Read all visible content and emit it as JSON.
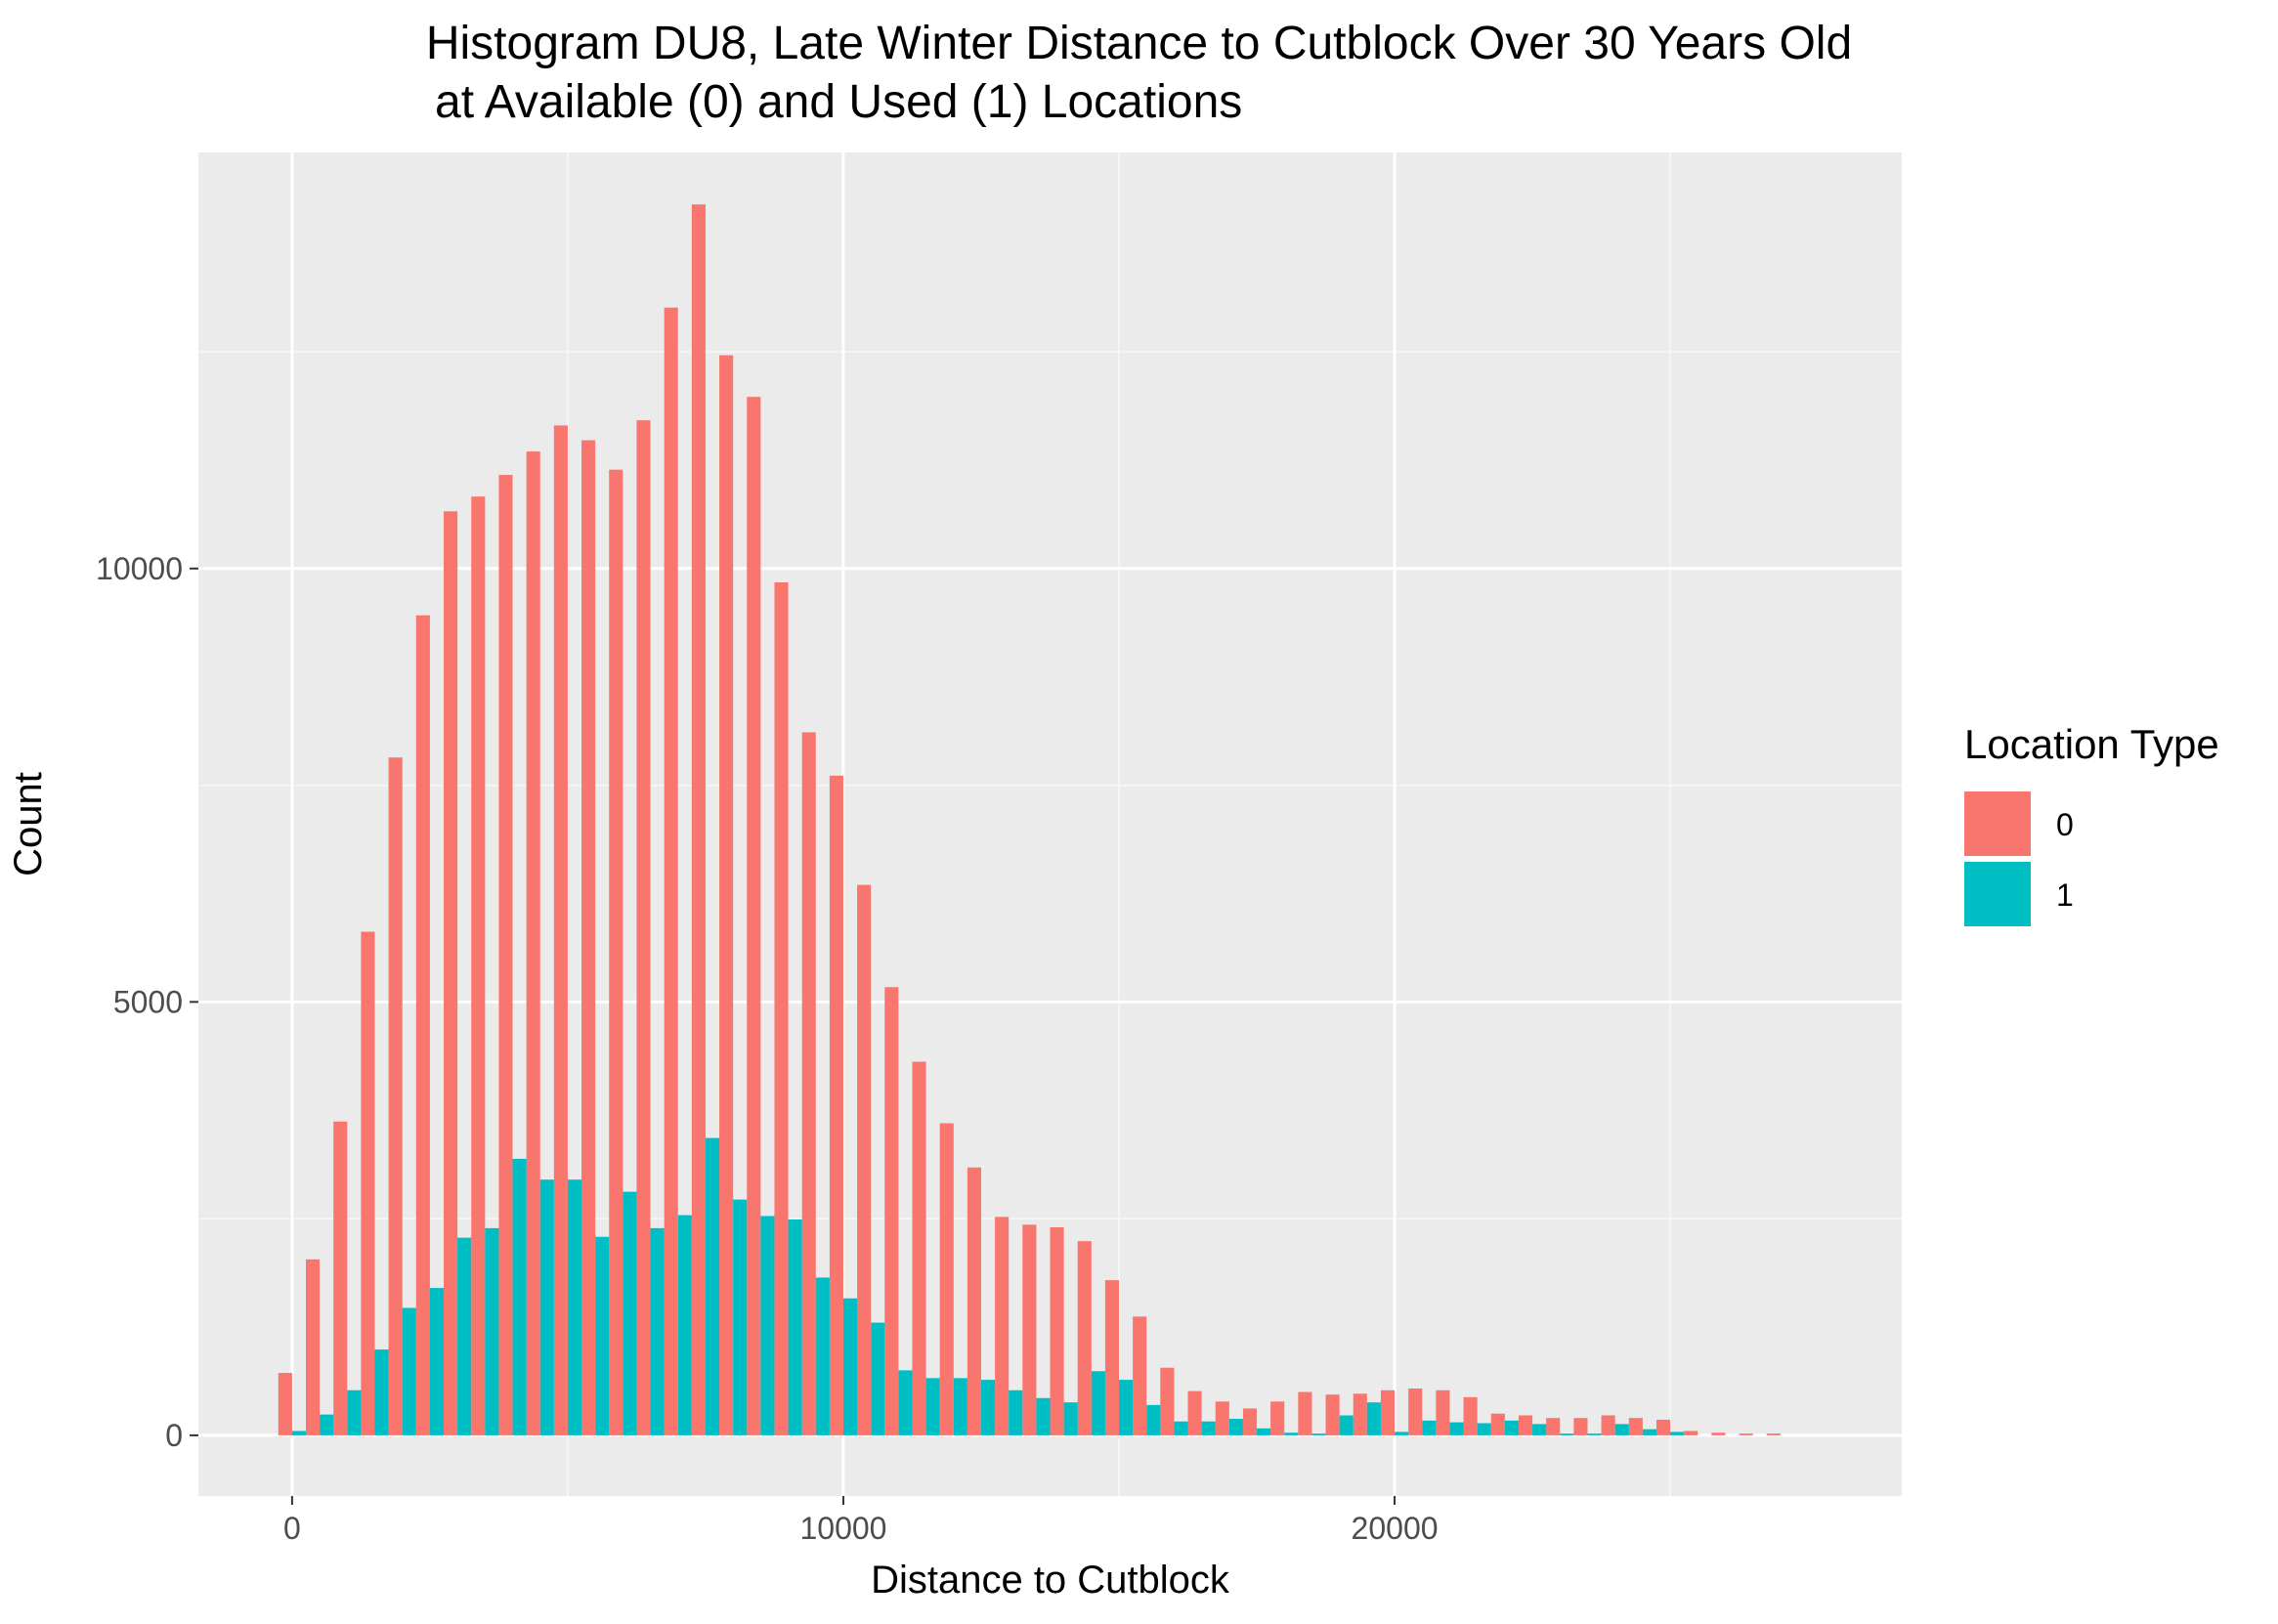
{
  "title": {
    "line1": "Histogram DU8, Late Winter Distance to Cutblock Over 30 Years Old",
    "line2": "at Available (0) and Used (1) Locations"
  },
  "legend": {
    "title": "Location Type",
    "items": [
      {
        "label": "0",
        "color": "#F8766D"
      },
      {
        "label": "1",
        "color": "#00BFC4"
      }
    ]
  },
  "chart_data": {
    "type": "bar",
    "xlabel": "Distance to Cutblock",
    "ylabel": "Count",
    "xlim": [
      -1700,
      29200
    ],
    "ylim": [
      -700,
      14800
    ],
    "x_ticks": [
      0,
      10000,
      20000
    ],
    "x_tick_labels": [
      "0",
      "10000",
      "20000"
    ],
    "y_ticks": [
      0,
      5000,
      10000
    ],
    "y_tick_labels": [
      "0",
      "5000",
      "10000"
    ],
    "bin_width": 500,
    "first_bin_center": 0,
    "grid": true,
    "legend_position": "right",
    "series": [
      {
        "name": "0",
        "color": "#F8766D",
        "values": [
          720,
          2030,
          3620,
          5810,
          7820,
          9460,
          10660,
          10830,
          11080,
          11350,
          11650,
          11480,
          11140,
          11710,
          13010,
          14200,
          12460,
          11980,
          9840,
          8110,
          7610,
          6350,
          5170,
          4310,
          3600,
          3090,
          2520,
          2430,
          2400,
          2240,
          1790,
          1370,
          780,
          510,
          390,
          310,
          390,
          500,
          470,
          480,
          520,
          540,
          520,
          440,
          250,
          230,
          200,
          200,
          230,
          200,
          180,
          50,
          30,
          20,
          20
        ]
      },
      {
        "name": "1",
        "color": "#00BFC4",
        "values": [
          50,
          240,
          520,
          990,
          1470,
          1700,
          2280,
          2390,
          3190,
          2950,
          2950,
          2290,
          2810,
          2390,
          2540,
          3430,
          2720,
          2530,
          2490,
          1820,
          1580,
          1300,
          750,
          660,
          660,
          640,
          520,
          430,
          380,
          740,
          640,
          350,
          160,
          160,
          190,
          80,
          30,
          20,
          230,
          380,
          40,
          170,
          150,
          140,
          170,
          130,
          20,
          20,
          130,
          70,
          40,
          0,
          0,
          0,
          0
        ]
      }
    ]
  }
}
